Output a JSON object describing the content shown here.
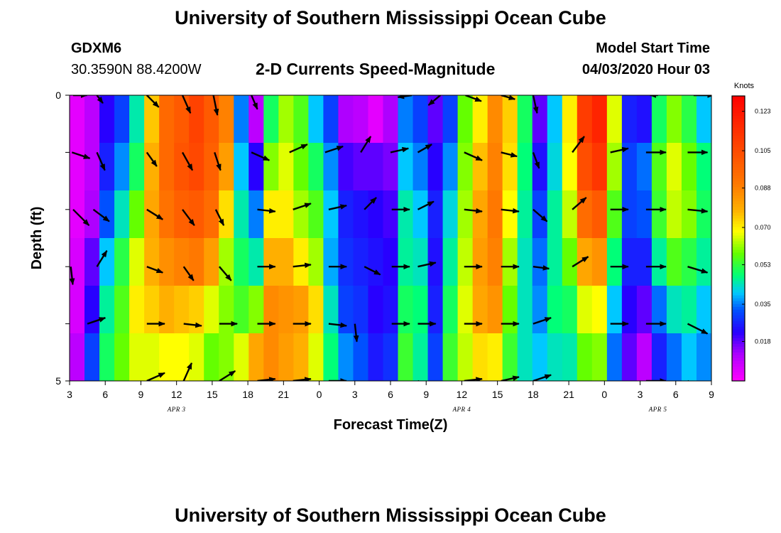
{
  "header": {
    "title_top": "University of Southern Mississippi Ocean Cube",
    "title_bottom": "University of Southern Mississippi Ocean Cube",
    "station": "GDXM6",
    "coords": "30.3590N 88.4200W",
    "plot_title": "2-D Currents Speed-Magnitude",
    "model_label": "Model Start Time",
    "model_time": "04/03/2020 Hour 03"
  },
  "chart_data": {
    "type": "heatmap",
    "title": "2-D Currents Speed-Magnitude",
    "xlabel": "Forecast Time(Z)",
    "ylabel": "Depth (ft)",
    "x_tick_labels": [
      "3",
      "6",
      "9",
      "12",
      "15",
      "18",
      "21",
      "0",
      "3",
      "6",
      "9",
      "12",
      "15",
      "18",
      "21",
      "0",
      "3",
      "6",
      "9"
    ],
    "x_hours": [
      0,
      54
    ],
    "y_tick_labels": [
      "0",
      "5"
    ],
    "ylim": [
      0,
      5
    ],
    "date_labels": [
      {
        "text": "APR 3",
        "hour": 9
      },
      {
        "text": "APR 4",
        "hour": 33
      },
      {
        "text": "APR 5",
        "hour": 49.5
      }
    ],
    "colorbar": {
      "unit": "Knots",
      "tick_labels": [
        "0.123",
        "0.105",
        "0.088",
        "0.070",
        "0.053",
        "0.035",
        "0.018"
      ],
      "tick_values": [
        0.123,
        0.105,
        0.088,
        0.07,
        0.053,
        0.035,
        0.018
      ],
      "range": [
        0.0,
        0.13
      ]
    },
    "depth_levels": [
      0,
      1,
      2,
      3,
      4,
      5
    ],
    "speed_by_hour": [
      [
        0.004,
        0.004,
        0.004,
        0.006,
        0.006,
        0.01
      ],
      [
        0.01,
        0.01,
        0.012,
        0.018,
        0.022,
        0.03
      ],
      [
        0.022,
        0.026,
        0.032,
        0.04,
        0.046,
        0.05
      ],
      [
        0.03,
        0.036,
        0.044,
        0.052,
        0.056,
        0.058
      ],
      [
        0.045,
        0.05,
        0.058,
        0.066,
        0.07,
        0.066
      ],
      [
        0.075,
        0.078,
        0.08,
        0.078,
        0.074,
        0.066
      ],
      [
        0.095,
        0.095,
        0.092,
        0.085,
        0.078,
        0.068
      ],
      [
        0.1,
        0.102,
        0.098,
        0.088,
        0.076,
        0.068
      ],
      [
        0.108,
        0.106,
        0.1,
        0.09,
        0.074,
        0.066
      ],
      [
        0.1,
        0.098,
        0.094,
        0.082,
        0.066,
        0.058
      ],
      [
        0.088,
        0.082,
        0.072,
        0.062,
        0.06,
        0.06
      ],
      [
        0.035,
        0.04,
        0.045,
        0.05,
        0.055,
        0.066
      ],
      [
        0.01,
        0.022,
        0.035,
        0.045,
        0.06,
        0.08
      ],
      [
        0.05,
        0.06,
        0.07,
        0.078,
        0.086,
        0.086
      ],
      [
        0.062,
        0.066,
        0.07,
        0.078,
        0.084,
        0.082
      ],
      [
        0.056,
        0.058,
        0.062,
        0.07,
        0.082,
        0.078
      ],
      [
        0.04,
        0.05,
        0.056,
        0.062,
        0.072,
        0.066
      ],
      [
        0.03,
        0.036,
        0.04,
        0.038,
        0.044,
        0.048
      ],
      [
        0.012,
        0.02,
        0.026,
        0.028,
        0.03,
        0.036
      ],
      [
        0.01,
        0.018,
        0.024,
        0.026,
        0.028,
        0.032
      ],
      [
        0.004,
        0.018,
        0.022,
        0.024,
        0.022,
        0.025
      ],
      [
        0.012,
        0.016,
        0.02,
        0.022,
        0.024,
        0.028
      ],
      [
        0.035,
        0.04,
        0.045,
        0.046,
        0.05,
        0.054
      ],
      [
        0.03,
        0.035,
        0.04,
        0.044,
        0.048,
        0.046
      ],
      [
        0.018,
        0.022,
        0.026,
        0.024,
        0.026,
        0.03
      ],
      [
        0.03,
        0.036,
        0.042,
        0.046,
        0.05,
        0.054
      ],
      [
        0.058,
        0.06,
        0.062,
        0.064,
        0.066,
        0.064
      ],
      [
        0.07,
        0.076,
        0.08,
        0.082,
        0.08,
        0.072
      ],
      [
        0.086,
        0.088,
        0.09,
        0.088,
        0.084,
        0.07
      ],
      [
        0.074,
        0.072,
        0.068,
        0.062,
        0.058,
        0.054
      ],
      [
        0.05,
        0.048,
        0.046,
        0.044,
        0.044,
        0.044
      ],
      [
        0.018,
        0.024,
        0.03,
        0.034,
        0.036,
        0.04
      ],
      [
        0.04,
        0.042,
        0.046,
        0.046,
        0.048,
        0.044
      ],
      [
        0.07,
        0.068,
        0.064,
        0.058,
        0.05,
        0.045
      ],
      [
        0.11,
        0.104,
        0.094,
        0.08,
        0.066,
        0.058
      ],
      [
        0.118,
        0.112,
        0.1,
        0.084,
        0.068,
        0.06
      ],
      [
        0.066,
        0.062,
        0.056,
        0.048,
        0.04,
        0.034
      ],
      [
        0.026,
        0.03,
        0.03,
        0.026,
        0.022,
        0.018
      ],
      [
        0.024,
        0.034,
        0.032,
        0.026,
        0.018,
        0.01
      ],
      [
        0.05,
        0.056,
        0.054,
        0.046,
        0.034,
        0.026
      ],
      [
        0.06,
        0.066,
        0.064,
        0.056,
        0.044,
        0.034
      ],
      [
        0.052,
        0.058,
        0.06,
        0.052,
        0.046,
        0.04
      ],
      [
        0.04,
        0.048,
        0.05,
        0.046,
        0.04,
        0.036
      ]
    ],
    "arrows": [
      {
        "hour": 0.3,
        "depth": 0,
        "u": 0.7,
        "v": 0
      },
      {
        "hour": 2.3,
        "depth": 0,
        "u": 0.3,
        "v": 0.4
      },
      {
        "hour": 6.5,
        "depth": 0,
        "u": 0.6,
        "v": 0.6
      },
      {
        "hour": 9.5,
        "depth": 0,
        "u": 0.4,
        "v": 0.9
      },
      {
        "hour": 12.1,
        "depth": 0,
        "u": 0.2,
        "v": 1.0
      },
      {
        "hour": 15.3,
        "depth": 0,
        "u": 0.3,
        "v": 0.7
      },
      {
        "hour": 28.8,
        "depth": 0,
        "u": -0.7,
        "v": 0.1
      },
      {
        "hour": 31.2,
        "depth": 0,
        "u": -0.6,
        "v": 0.5
      },
      {
        "hour": 33.3,
        "depth": 0,
        "u": 0.8,
        "v": 0.3
      },
      {
        "hour": 36.3,
        "depth": 0,
        "u": 0.7,
        "v": 0.2
      },
      {
        "hour": 39.0,
        "depth": 0,
        "u": 0.2,
        "v": 0.9
      },
      {
        "hour": 49.5,
        "depth": 0,
        "u": -0.4,
        "v": 0
      },
      {
        "hour": 52.5,
        "depth": 0,
        "u": 1.0,
        "v": 0
      },
      {
        "hour": 0.2,
        "depth": 1,
        "u": 0.9,
        "v": 0.3
      },
      {
        "hour": 2.3,
        "depth": 1,
        "u": 0.4,
        "v": 0.9
      },
      {
        "hour": 6.5,
        "depth": 1,
        "u": 0.5,
        "v": 0.7
      },
      {
        "hour": 9.5,
        "depth": 1,
        "u": 0.5,
        "v": 0.9
      },
      {
        "hour": 12.2,
        "depth": 1,
        "u": 0.3,
        "v": 0.9
      },
      {
        "hour": 15.3,
        "depth": 1,
        "u": 0.9,
        "v": 0.4
      },
      {
        "hour": 18.5,
        "depth": 1,
        "u": 0.9,
        "v": -0.4
      },
      {
        "hour": 21.5,
        "depth": 1,
        "u": 0.9,
        "v": -0.3
      },
      {
        "hour": 24.5,
        "depth": 1,
        "u": 0.5,
        "v": -0.8
      },
      {
        "hour": 27.0,
        "depth": 1,
        "u": 0.9,
        "v": -0.2
      },
      {
        "hour": 29.3,
        "depth": 1,
        "u": 0.7,
        "v": -0.4
      },
      {
        "hour": 33.2,
        "depth": 1,
        "u": 0.9,
        "v": 0.4
      },
      {
        "hour": 36.3,
        "depth": 1,
        "u": 0.8,
        "v": 0.2
      },
      {
        "hour": 39.0,
        "depth": 1,
        "u": 0.3,
        "v": 0.8
      },
      {
        "hour": 42.3,
        "depth": 1,
        "u": 0.6,
        "v": -0.8
      },
      {
        "hour": 45.5,
        "depth": 1,
        "u": 0.9,
        "v": -0.2
      },
      {
        "hour": 48.5,
        "depth": 1,
        "u": 1.0,
        "v": 0
      },
      {
        "hour": 52.0,
        "depth": 1,
        "u": 1.0,
        "v": 0
      },
      {
        "hour": 0.3,
        "depth": 2,
        "u": 0.8,
        "v": 0.8
      },
      {
        "hour": 2.0,
        "depth": 2,
        "u": 0.8,
        "v": 0.6
      },
      {
        "hour": 6.5,
        "depth": 2,
        "u": 0.8,
        "v": 0.5
      },
      {
        "hour": 9.5,
        "depth": 2,
        "u": 0.6,
        "v": 0.8
      },
      {
        "hour": 12.3,
        "depth": 2,
        "u": 0.4,
        "v": 0.8
      },
      {
        "hour": 15.8,
        "depth": 2,
        "u": 0.9,
        "v": 0.1
      },
      {
        "hour": 18.8,
        "depth": 2,
        "u": 0.9,
        "v": -0.3
      },
      {
        "hour": 21.8,
        "depth": 2,
        "u": 0.9,
        "v": -0.2
      },
      {
        "hour": 24.8,
        "depth": 2,
        "u": 0.6,
        "v": -0.6
      },
      {
        "hour": 27.1,
        "depth": 2,
        "u": 0.9,
        "v": 0
      },
      {
        "hour": 29.3,
        "depth": 2,
        "u": 0.8,
        "v": -0.4
      },
      {
        "hour": 33.2,
        "depth": 2,
        "u": 0.9,
        "v": 0.1
      },
      {
        "hour": 36.3,
        "depth": 2,
        "u": 0.9,
        "v": 0.1
      },
      {
        "hour": 39.0,
        "depth": 2,
        "u": 0.7,
        "v": 0.6
      },
      {
        "hour": 42.3,
        "depth": 2,
        "u": 0.7,
        "v": -0.6
      },
      {
        "hour": 45.5,
        "depth": 2,
        "u": 0.9,
        "v": 0
      },
      {
        "hour": 48.5,
        "depth": 2,
        "u": 1.0,
        "v": 0
      },
      {
        "hour": 52.0,
        "depth": 2,
        "u": 1.0,
        "v": 0.1
      },
      {
        "hour": 0.1,
        "depth": 3,
        "u": 0.1,
        "v": 0.9
      },
      {
        "hour": 2.3,
        "depth": 3,
        "u": 0.5,
        "v": -0.8
      },
      {
        "hour": 6.5,
        "depth": 3,
        "u": 0.8,
        "v": 0.3
      },
      {
        "hour": 9.6,
        "depth": 3,
        "u": 0.5,
        "v": 0.7
      },
      {
        "hour": 12.6,
        "depth": 3,
        "u": 0.6,
        "v": 0.7
      },
      {
        "hour": 15.8,
        "depth": 3,
        "u": 0.9,
        "v": 0
      },
      {
        "hour": 18.8,
        "depth": 3,
        "u": 0.9,
        "v": -0.1
      },
      {
        "hour": 21.8,
        "depth": 3,
        "u": 0.9,
        "v": 0
      },
      {
        "hour": 24.8,
        "depth": 3,
        "u": 0.8,
        "v": 0.4
      },
      {
        "hour": 27.1,
        "depth": 3,
        "u": 0.9,
        "v": 0
      },
      {
        "hour": 29.3,
        "depth": 3,
        "u": 0.9,
        "v": -0.2
      },
      {
        "hour": 33.2,
        "depth": 3,
        "u": 0.9,
        "v": 0
      },
      {
        "hour": 36.3,
        "depth": 3,
        "u": 0.9,
        "v": 0
      },
      {
        "hour": 39.0,
        "depth": 3,
        "u": 0.8,
        "v": 0.1
      },
      {
        "hour": 42.3,
        "depth": 3,
        "u": 0.8,
        "v": -0.5
      },
      {
        "hour": 45.5,
        "depth": 3,
        "u": 0.9,
        "v": 0
      },
      {
        "hour": 48.5,
        "depth": 3,
        "u": 1.0,
        "v": 0
      },
      {
        "hour": 52.0,
        "depth": 3,
        "u": 1.0,
        "v": 0.3
      },
      {
        "hour": 1.5,
        "depth": 4,
        "u": 0.9,
        "v": -0.3
      },
      {
        "hour": 6.5,
        "depth": 4,
        "u": 0.9,
        "v": 0
      },
      {
        "hour": 9.6,
        "depth": 4,
        "u": 0.9,
        "v": 0.1
      },
      {
        "hour": 12.6,
        "depth": 4,
        "u": 0.9,
        "v": 0
      },
      {
        "hour": 15.8,
        "depth": 4,
        "u": 0.9,
        "v": 0
      },
      {
        "hour": 18.8,
        "depth": 4,
        "u": 0.9,
        "v": 0
      },
      {
        "hour": 21.8,
        "depth": 4,
        "u": 0.9,
        "v": 0.1
      },
      {
        "hour": 24.0,
        "depth": 4,
        "u": 0.1,
        "v": 0.9
      },
      {
        "hour": 27.1,
        "depth": 4,
        "u": 0.9,
        "v": 0
      },
      {
        "hour": 29.3,
        "depth": 4,
        "u": 0.9,
        "v": 0
      },
      {
        "hour": 33.2,
        "depth": 4,
        "u": 0.9,
        "v": 0
      },
      {
        "hour": 36.3,
        "depth": 4,
        "u": 0.9,
        "v": 0
      },
      {
        "hour": 39.0,
        "depth": 4,
        "u": 0.9,
        "v": -0.3
      },
      {
        "hour": 45.5,
        "depth": 4,
        "u": 0.9,
        "v": 0
      },
      {
        "hour": 48.5,
        "depth": 4,
        "u": 1.0,
        "v": 0
      },
      {
        "hour": 52.0,
        "depth": 4,
        "u": 1.0,
        "v": 0.5
      },
      {
        "hour": 6.5,
        "depth": 5,
        "u": 0.9,
        "v": -0.4
      },
      {
        "hour": 9.6,
        "depth": 5,
        "u": 0.4,
        "v": -0.9
      },
      {
        "hour": 12.6,
        "depth": 5,
        "u": 0.8,
        "v": -0.5
      },
      {
        "hour": 15.8,
        "depth": 5,
        "u": 0.9,
        "v": -0.1
      },
      {
        "hour": 18.8,
        "depth": 5,
        "u": 0.9,
        "v": -0.1
      },
      {
        "hour": 21.8,
        "depth": 5,
        "u": 0.9,
        "v": 0
      },
      {
        "hour": 29.3,
        "depth": 5,
        "u": 0.9,
        "v": 0.4
      },
      {
        "hour": 33.2,
        "depth": 5,
        "u": 0.9,
        "v": -0.1
      },
      {
        "hour": 36.3,
        "depth": 5,
        "u": 0.9,
        "v": -0.2
      },
      {
        "hour": 39.0,
        "depth": 5,
        "u": 0.9,
        "v": -0.3
      },
      {
        "hour": 48.5,
        "depth": 5,
        "u": 1.0,
        "v": 0
      },
      {
        "hour": 52.0,
        "depth": 5,
        "u": 1.0,
        "v": 0.5
      }
    ]
  }
}
